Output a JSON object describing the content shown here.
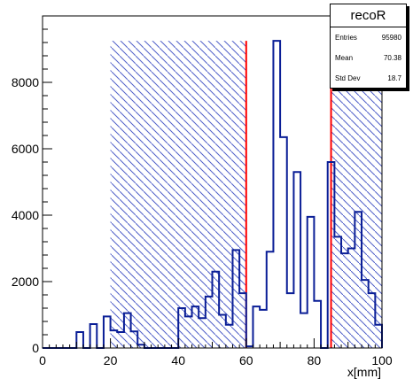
{
  "stats_box": {
    "title": "recoR",
    "rows": [
      {
        "label": "Entries",
        "value": "95980"
      },
      {
        "label": "Mean",
        "value": "70.38"
      },
      {
        "label": "Std Dev",
        "value": "18.7"
      }
    ]
  },
  "chart_data": {
    "type": "histogram",
    "xlabel": "x[mm]",
    "ylabel": "",
    "xlim": [
      0,
      100
    ],
    "ylim": [
      0,
      10000
    ],
    "x_ticks": [
      0,
      20,
      40,
      60,
      80,
      100
    ],
    "y_ticks": [
      0,
      2000,
      4000,
      6000,
      8000
    ],
    "bin_width": 2,
    "bin_edges_start": 0,
    "values": [
      0,
      0,
      0,
      0,
      0,
      480,
      0,
      720,
      0,
      950,
      530,
      480,
      1050,
      500,
      100,
      0,
      0,
      0,
      0,
      0,
      1200,
      950,
      1250,
      900,
      1550,
      2300,
      1000,
      700,
      2950,
      1650,
      50,
      1250,
      1150,
      2900,
      9250,
      6350,
      1650,
      5300,
      1050,
      3950,
      1420,
      0,
      5600,
      3350,
      2850,
      3000,
      4100,
      2050,
      1650,
      700
    ],
    "line_color": "#0a1e96",
    "hatched_regions": [
      [
        20,
        60
      ],
      [
        85,
        100
      ]
    ],
    "hatch_color": "#5060c8",
    "vertical_lines": [
      60,
      85
    ],
    "vertical_line_color": "#ff0000",
    "grid": false
  }
}
